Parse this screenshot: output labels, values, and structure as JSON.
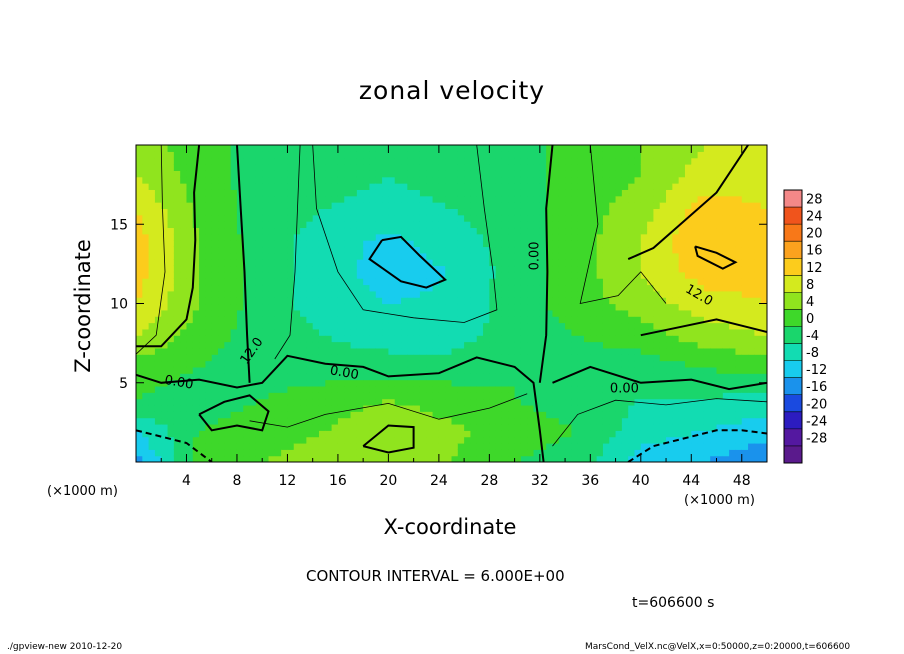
{
  "chart_data": {
    "type": "heatmap",
    "title": "zonal velocity",
    "xlabel": "X-coordinate",
    "ylabel": "Z-coordinate",
    "x_unit_note": "(×1000 m)",
    "xlim": [
      0,
      50
    ],
    "ylim": [
      0,
      20
    ],
    "x_ticks": [
      4,
      8,
      12,
      16,
      20,
      24,
      28,
      32,
      36,
      40,
      44,
      48
    ],
    "y_ticks": [
      5,
      10,
      15
    ],
    "colorbar": {
      "levels": [
        28,
        24,
        20,
        16,
        12,
        8,
        4,
        0,
        -4,
        -8,
        -12,
        -16,
        -20,
        -24,
        -28
      ],
      "colors": [
        "#f48888",
        "#f0541c",
        "#f87818",
        "#fca21e",
        "#fccc1c",
        "#d4ea1e",
        "#90e41e",
        "#3ed82a",
        "#1ad66c",
        "#12dcb2",
        "#18ccee",
        "#1a92ec",
        "#1a4ae0",
        "#2c1cc0",
        "#5418a0",
        "#5a1a8c"
      ]
    },
    "field_samples": {
      "x": [
        0,
        5,
        10,
        15,
        20,
        25,
        30,
        35,
        40,
        45,
        50
      ],
      "z": [
        0,
        2,
        4,
        6,
        8,
        10,
        12,
        14,
        16,
        18,
        20
      ],
      "values": [
        [
          -14,
          2,
          4,
          6,
          6,
          4,
          0,
          -2,
          -10,
          -12,
          -16
        ],
        [
          -8,
          0,
          2,
          4,
          7,
          5,
          2,
          0,
          -6,
          -8,
          -10
        ],
        [
          0,
          -2,
          0,
          2,
          4,
          2,
          0,
          -2,
          -4,
          -4,
          -6
        ],
        [
          2,
          0,
          -2,
          -2,
          -2,
          -2,
          0,
          -2,
          -2,
          0,
          2
        ],
        [
          8,
          2,
          -2,
          -4,
          -6,
          -6,
          -2,
          0,
          2,
          6,
          8
        ],
        [
          12,
          4,
          -2,
          -6,
          -8,
          -7,
          -2,
          2,
          6,
          10,
          12
        ],
        [
          14,
          4,
          -2,
          -6,
          -10,
          -8,
          -2,
          2,
          8,
          14,
          14
        ],
        [
          14,
          4,
          -2,
          -6,
          -9,
          -6,
          -2,
          2,
          8,
          16,
          14
        ],
        [
          12,
          3,
          -2,
          -4,
          -6,
          -4,
          -2,
          2,
          6,
          14,
          12
        ],
        [
          8,
          2,
          -2,
          -2,
          -4,
          -2,
          -2,
          2,
          4,
          10,
          10
        ],
        [
          6,
          2,
          -2,
          -2,
          -2,
          -2,
          -2,
          2,
          4,
          8,
          8
        ]
      ]
    },
    "contour_labels": [
      "0.00",
      "0.00",
      "0.00",
      "0.00",
      "12.0",
      "12.0"
    ],
    "contour_interval_text": "CONTOUR INTERVAL = 6.000E+00",
    "time_text": "t=606600 s"
  },
  "footer": {
    "left": "./gpview-new   2010-12-20",
    "right": "MarsCond_VelX.nc@VelX,x=0:50000,z=0:20000,t=606600"
  }
}
